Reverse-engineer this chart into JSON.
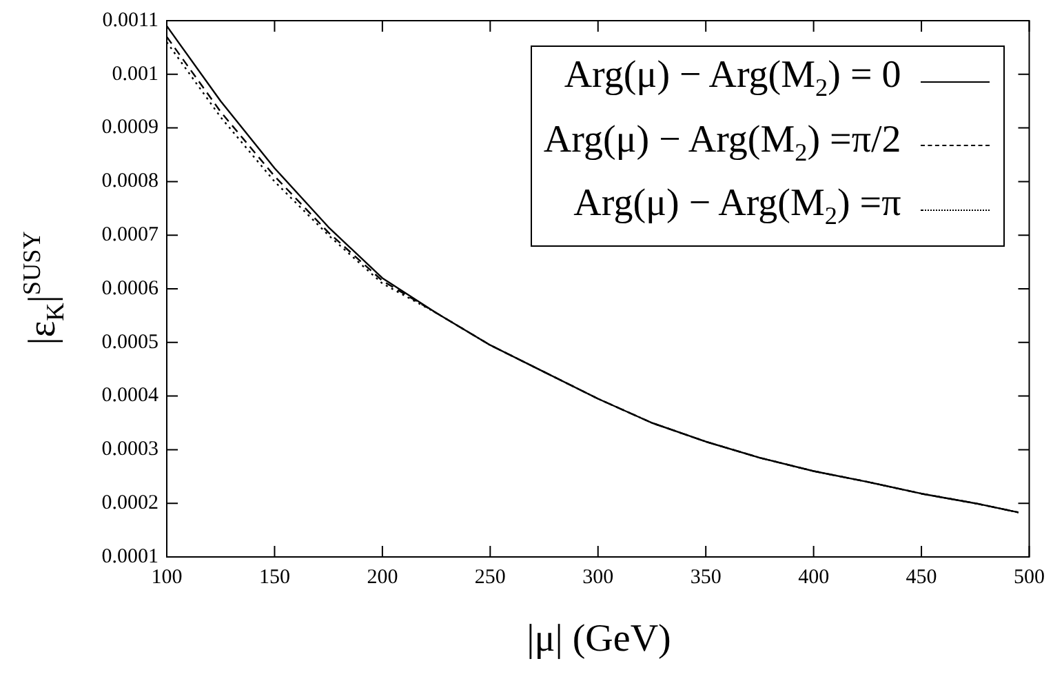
{
  "chart_data": {
    "type": "line",
    "xlabel": "|μ| (GeV)",
    "ylabel": "|ε$_{K}$|$^{SUSY}$",
    "x": [
      100,
      125,
      150,
      175,
      200,
      225,
      250,
      275,
      300,
      325,
      350,
      375,
      400,
      425,
      450,
      475,
      495
    ],
    "xlim": [
      100,
      500
    ],
    "xticks": [
      100,
      150,
      200,
      250,
      300,
      350,
      400,
      450,
      500
    ],
    "ylim": [
      0.0001,
      0.0011
    ],
    "yticks": [
      0.0001,
      0.0002,
      0.0003,
      0.0004,
      0.0005,
      0.0006,
      0.0007,
      0.0008,
      0.0009,
      0.001,
      0.0011
    ],
    "grid": false,
    "legend": "top right",
    "marker": "none",
    "series": [
      {
        "name": "Arg(μ) − Arg(M$_{2}$) = 0",
        "color": "#000000",
        "line_style": "solid",
        "values": [
          0.00109,
          0.00095,
          0.000825,
          0.000715,
          0.00062,
          0.000555,
          0.000495,
          0.000445,
          0.000395,
          0.00035,
          0.000315,
          0.000285,
          0.00026,
          0.00024,
          0.000218,
          0.0002,
          0.000183
        ]
      },
      {
        "name": "Arg(μ) − Arg(M$_{2}$) =π/2",
        "color": "#000000",
        "line_style": "dashed",
        "values": [
          0.00107,
          0.00093,
          0.00081,
          0.000705,
          0.000615,
          0.000555,
          0.000495,
          0.000445,
          0.000395,
          0.00035,
          0.000315,
          0.000285,
          0.00026,
          0.00024,
          0.000218,
          0.0002,
          0.000183
        ]
      },
      {
        "name": "Arg(μ) − Arg(M$_{2}$) =π",
        "color": "#000000",
        "line_style": "dotted",
        "values": [
          0.00106,
          0.00092,
          0.0008,
          0.0007,
          0.00061,
          0.000555,
          0.000495,
          0.000445,
          0.000395,
          0.00035,
          0.000315,
          0.000285,
          0.00026,
          0.00024,
          0.000218,
          0.0002,
          0.000183
        ]
      }
    ]
  }
}
